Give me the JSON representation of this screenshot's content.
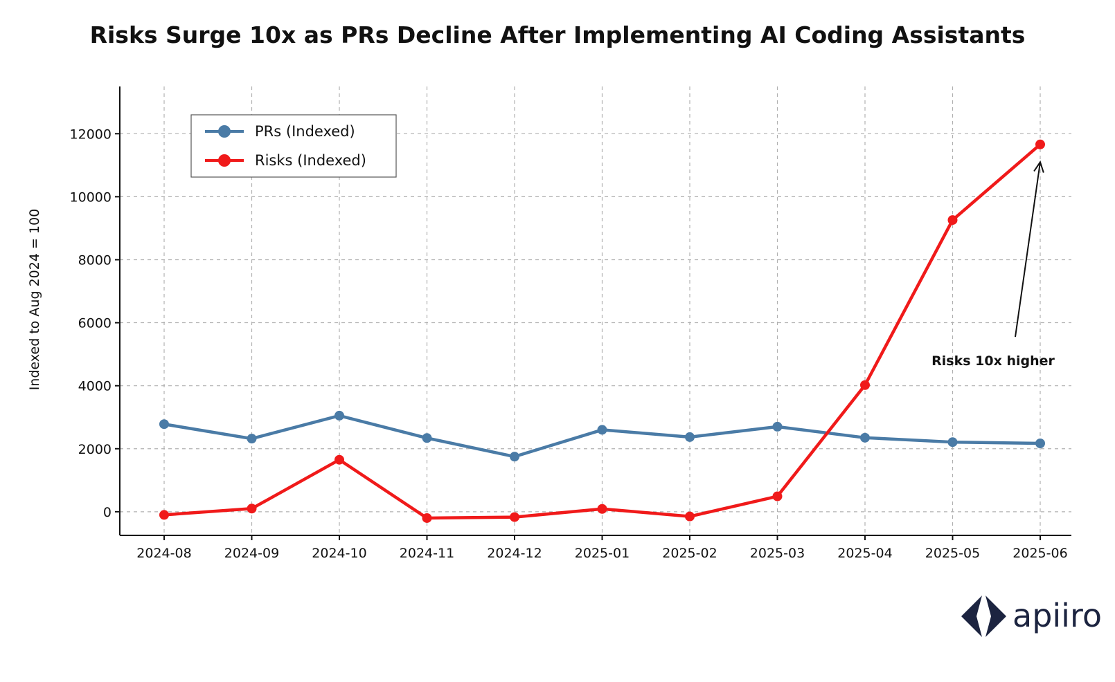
{
  "chart_data": {
    "type": "line",
    "title": "Risks Surge 10x as PRs Decline After Implementing AI Coding Assistants",
    "xlabel": "",
    "ylabel": "Indexed to Aug 2024 = 100",
    "categories": [
      "2024-08",
      "2024-09",
      "2024-10",
      "2024-11",
      "2024-12",
      "2025-01",
      "2025-02",
      "2025-03",
      "2025-04",
      "2025-05",
      "2025-06"
    ],
    "yticks": [
      0,
      2000,
      4000,
      6000,
      8000,
      10000,
      12000
    ],
    "ylim": [
      -750,
      13500
    ],
    "grid": true,
    "legend_position": "top-left",
    "series": [
      {
        "name": "PRs (Indexed)",
        "color": "#4a7ba6",
        "values": [
          2780,
          2320,
          3050,
          2340,
          1750,
          2600,
          2370,
          2700,
          2350,
          2210,
          2170
        ]
      },
      {
        "name": "Risks (Indexed)",
        "color": "#f01a1a",
        "values": [
          -100,
          100,
          1650,
          -200,
          -170,
          90,
          -150,
          490,
          4020,
          9260,
          11660
        ]
      }
    ],
    "annotations": [
      {
        "text": "Risks 10x higher",
        "target_category": "2025-06",
        "target_value": 11100
      }
    ]
  },
  "branding": {
    "logo_text": "apiiro",
    "logo_color": "#1c2440"
  }
}
